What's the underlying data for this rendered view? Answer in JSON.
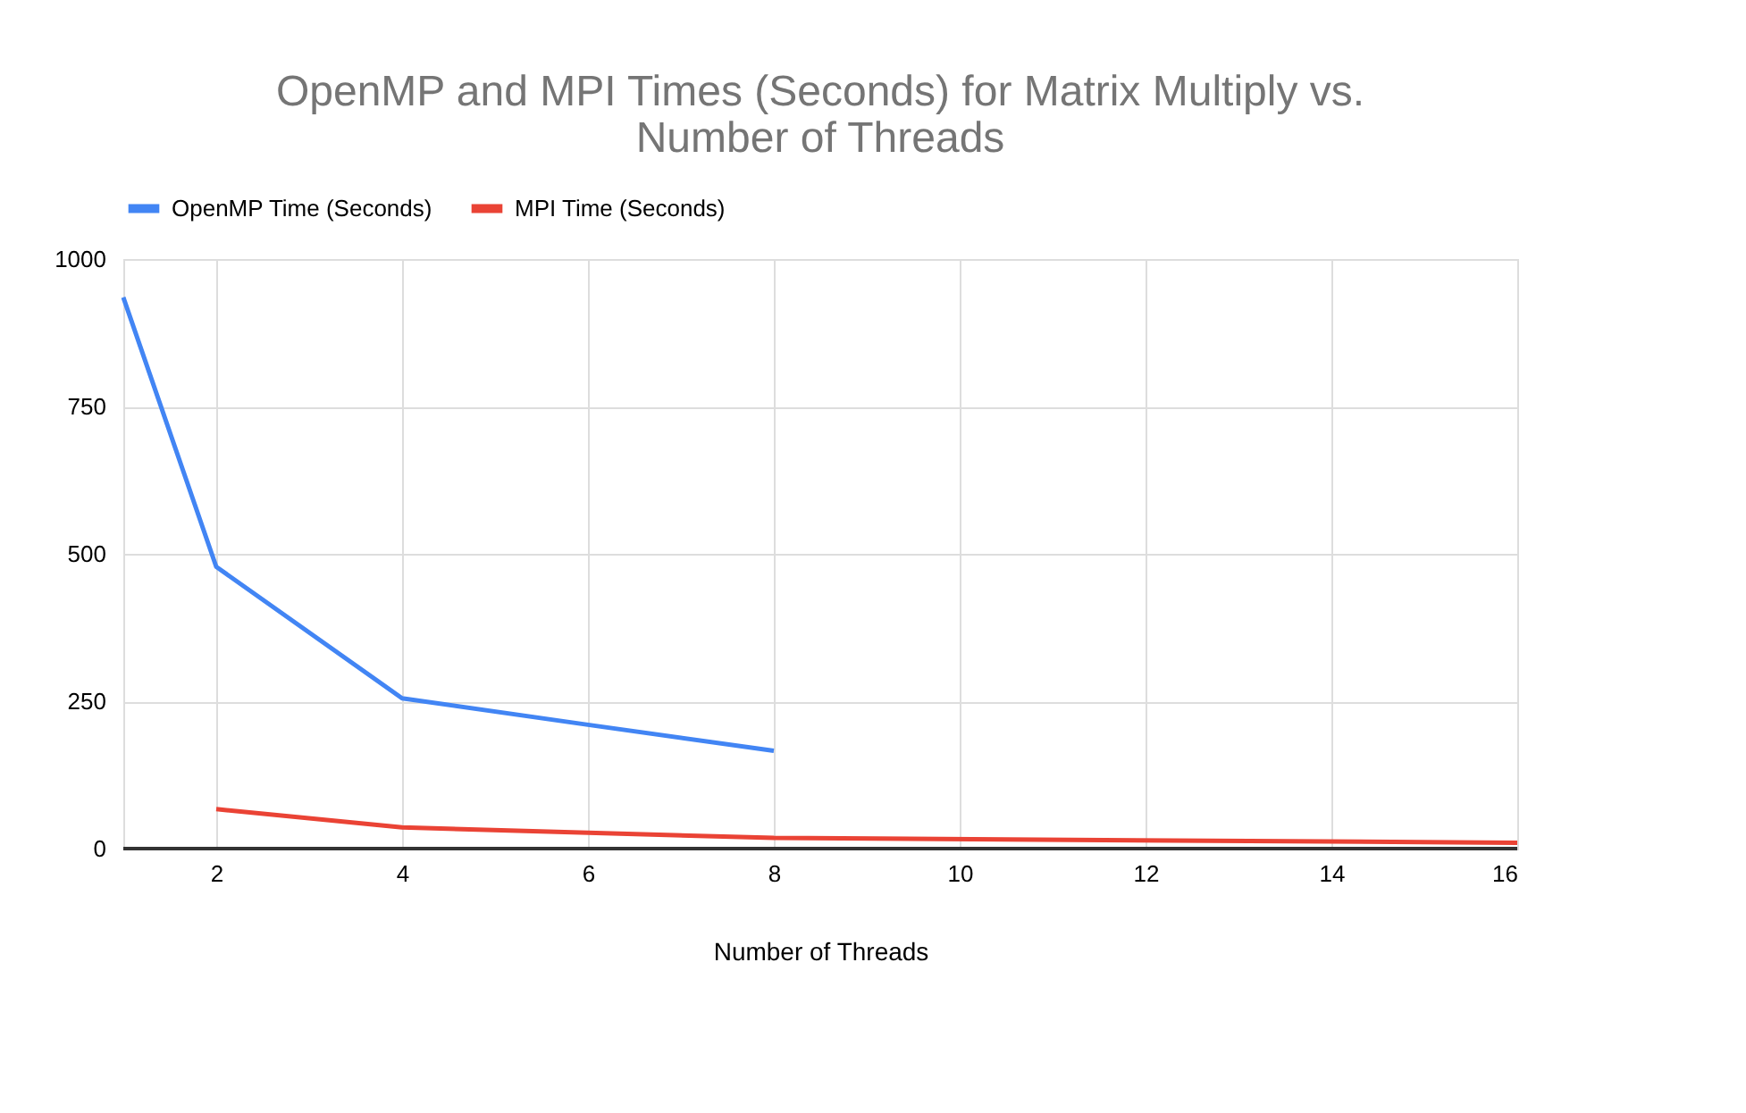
{
  "chart_data": {
    "type": "line",
    "title": [
      "OpenMP and MPI Times (Seconds) for Matrix Multiply vs.",
      "Number of Threads"
    ],
    "xlabel": "Number of Threads",
    "xlim": [
      1,
      16
    ],
    "xticks": [
      2,
      4,
      6,
      8,
      10,
      12,
      14,
      16
    ],
    "ylim": [
      0,
      1000
    ],
    "yticks": [
      0,
      250,
      500,
      750,
      1000
    ],
    "grid": true,
    "legend": "top",
    "series": [
      {
        "name": "OpenMP Time (Seconds)",
        "color": "#4285f4",
        "x": [
          1,
          2,
          4,
          6,
          8
        ],
        "values": [
          935,
          478,
          255,
          210,
          166
        ]
      },
      {
        "name": "MPI Time (Seconds)",
        "color": "#ea4335",
        "x": [
          2,
          4,
          8,
          16
        ],
        "values": [
          67,
          36,
          18,
          10
        ]
      }
    ]
  }
}
